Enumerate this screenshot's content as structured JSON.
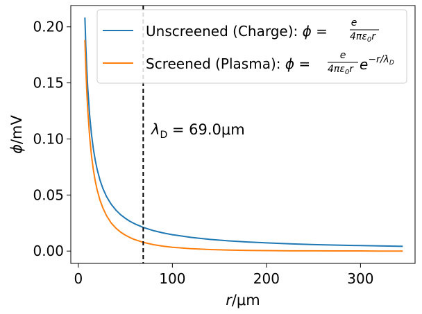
{
  "chart_data": {
    "type": "line",
    "xlabel": "r/μm",
    "ylabel": "ϕ/mV",
    "xlim": [
      -8,
      358
    ],
    "ylim": [
      -0.011,
      0.219
    ],
    "x_ticks": [
      0,
      100,
      200,
      300
    ],
    "y_ticks": [
      0.0,
      0.05,
      0.1,
      0.15,
      0.2
    ],
    "x_tick_labels": [
      "0",
      "100",
      "200",
      "300"
    ],
    "y_tick_labels": [
      "0.00",
      "0.05",
      "0.10",
      "0.15",
      "0.20"
    ],
    "grid": false,
    "legend_position": "upper-right",
    "series": [
      {
        "name": "Unscreened (Charge): ϕ = e / (4πε₀r)",
        "color": "#1f77b4",
        "x": [
          7,
          8,
          9,
          10,
          12,
          14,
          16,
          18,
          20,
          23,
          26,
          30,
          35,
          40,
          45,
          50,
          55,
          60,
          69,
          80,
          90,
          100,
          120,
          140,
          160,
          180,
          200,
          225,
          250,
          275,
          300,
          320,
          345
        ],
        "y": [
          0.2083,
          0.1823,
          0.162,
          0.1458,
          0.1215,
          0.1041,
          0.0911,
          0.081,
          0.0729,
          0.0634,
          0.0561,
          0.0486,
          0.0417,
          0.0365,
          0.0324,
          0.0292,
          0.0265,
          0.0243,
          0.0211,
          0.0182,
          0.0162,
          0.0146,
          0.0122,
          0.0104,
          0.0091,
          0.0081,
          0.0073,
          0.0065,
          0.0058,
          0.0053,
          0.0049,
          0.0046,
          0.0042
        ]
      },
      {
        "name": "Screened (Plasma): ϕ = e / (4πε₀r) · e^(−r/λ_D)",
        "color": "#ff7f0e",
        "x": [
          7,
          8,
          9,
          10,
          12,
          14,
          16,
          18,
          20,
          23,
          26,
          30,
          35,
          40,
          45,
          50,
          55,
          60,
          69,
          80,
          90,
          100,
          120,
          140,
          160,
          180,
          200,
          225,
          250,
          275,
          300,
          320,
          345
        ],
        "y": [
          0.1882,
          0.1626,
          0.1422,
          0.1262,
          0.1022,
          0.0851,
          0.0724,
          0.0625,
          0.0546,
          0.0455,
          0.0387,
          0.0315,
          0.025,
          0.0204,
          0.0169,
          0.0142,
          0.012,
          0.0102,
          0.0078,
          0.0057,
          0.0044,
          0.0034,
          0.0021,
          0.0014,
          0.0009,
          0.0006,
          0.0004,
          0.0002,
          0.0002,
          0.0001,
          0.0001,
          0.0,
          0.0
        ]
      }
    ],
    "vline": {
      "x": 69.0,
      "style": "dashed",
      "color": "#000000"
    },
    "annotation": {
      "text": "λD = 69.0μm"
    }
  },
  "legend": {
    "unscreened_prefix": "Unscreened (Charge): ",
    "screened_prefix": "Screened (Plasma): ",
    "formula_phi": "ϕ",
    "formula_eq": " = ",
    "frac_num": "e",
    "frac_den_main": "4πε",
    "frac_den_sub": "0",
    "frac_den_tail": "r",
    "exp_base": "e",
    "exp_power": "−r/λ",
    "exp_power_sub": "D"
  },
  "annotation_parts": {
    "lambda": "λ",
    "sub": "D",
    "rest": " = 69.0μm"
  },
  "axis_title_parts": {
    "x_var": "r",
    "x_unit": "/μm",
    "y_var": "ϕ",
    "y_unit": "/mV"
  }
}
